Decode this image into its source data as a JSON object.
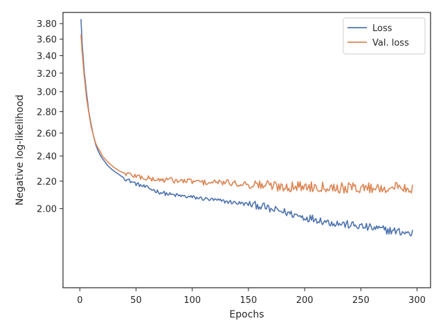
{
  "chart_data": {
    "type": "line",
    "xlabel": "Epochs",
    "ylabel": "Negative log-likelihood",
    "yscale": "log",
    "xlim": [
      -15,
      312
    ],
    "ylim": [
      1.52,
      3.95
    ],
    "x_ticks": [
      0,
      50,
      100,
      150,
      200,
      250,
      300
    ],
    "y_ticks": [
      2.0,
      2.2,
      2.4,
      2.6,
      2.8,
      3.0,
      3.2,
      3.4,
      3.6,
      3.8
    ],
    "y_tick_labels": [
      "2.00",
      "2.20",
      "2.40",
      "2.60",
      "2.80",
      "3.00",
      "3.20",
      "3.40",
      "3.60",
      "3.80"
    ],
    "legend_position": "top-right",
    "grid": false,
    "series": [
      {
        "name": "Loss",
        "color": "#4c72b0",
        "x": [
          1,
          2,
          4,
          6,
          8,
          10,
          12,
          14,
          16,
          18,
          20,
          25,
          30,
          35,
          40,
          45,
          50,
          60,
          70,
          80,
          90,
          100,
          110,
          120,
          130,
          140,
          150,
          160,
          165,
          170,
          175,
          180,
          185,
          190,
          195,
          200,
          210,
          220,
          230,
          240,
          250,
          260,
          270,
          280,
          290,
          295,
          296
        ],
        "y": [
          3.86,
          3.55,
          3.2,
          2.98,
          2.8,
          2.68,
          2.58,
          2.5,
          2.45,
          2.41,
          2.38,
          2.32,
          2.28,
          2.25,
          2.22,
          2.2,
          2.18,
          2.15,
          2.12,
          2.1,
          2.09,
          2.08,
          2.07,
          2.06,
          2.05,
          2.04,
          2.03,
          2.02,
          2.01,
          1.99,
          1.99,
          1.98,
          1.97,
          1.96,
          1.95,
          1.94,
          1.93,
          1.91,
          1.9,
          1.89,
          1.88,
          1.87,
          1.86,
          1.85,
          1.84,
          1.83,
          1.84
        ]
      },
      {
        "name": "Val. loss",
        "color": "#dd8452",
        "x": [
          1,
          2,
          4,
          6,
          8,
          10,
          12,
          14,
          16,
          18,
          20,
          25,
          30,
          35,
          40,
          45,
          50,
          60,
          70,
          80,
          90,
          100,
          110,
          120,
          130,
          140,
          150,
          160,
          165,
          170,
          175,
          180,
          185,
          190,
          195,
          200,
          210,
          220,
          230,
          240,
          250,
          260,
          270,
          280,
          285,
          290,
          295,
          296
        ],
        "y": [
          3.66,
          3.45,
          3.15,
          2.93,
          2.79,
          2.66,
          2.58,
          2.51,
          2.47,
          2.44,
          2.4,
          2.35,
          2.31,
          2.28,
          2.26,
          2.25,
          2.24,
          2.22,
          2.21,
          2.21,
          2.2,
          2.2,
          2.19,
          2.19,
          2.19,
          2.18,
          2.18,
          2.17,
          2.17,
          2.17,
          2.16,
          2.16,
          2.16,
          2.16,
          2.16,
          2.16,
          2.16,
          2.16,
          2.15,
          2.15,
          2.15,
          2.15,
          2.15,
          2.15,
          2.16,
          2.15,
          2.15,
          2.14
        ]
      }
    ]
  }
}
